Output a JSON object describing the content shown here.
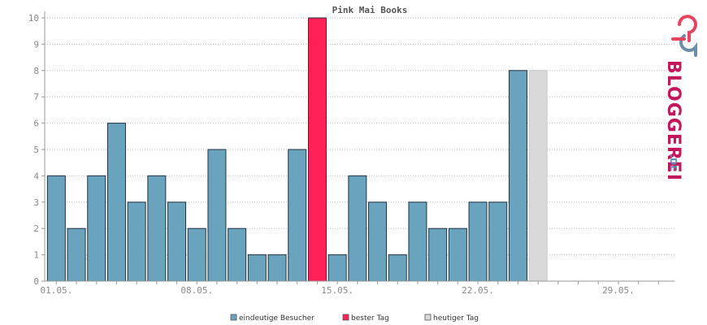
{
  "chart_data": {
    "type": "bar",
    "title": "Pink Mai Books",
    "ylim": [
      0,
      10
    ],
    "yticks": [
      0,
      1,
      2,
      3,
      4,
      5,
      6,
      7,
      8,
      9,
      10
    ],
    "x_labels": [
      {
        "day": 1,
        "label": "01.05."
      },
      {
        "day": 8,
        "label": "08.05."
      },
      {
        "day": 15,
        "label": "15.05."
      },
      {
        "day": 22,
        "label": "22.05."
      },
      {
        "day": 29,
        "label": "29.05."
      }
    ],
    "days_in_axis": 31,
    "values": [
      4,
      2,
      4,
      6,
      3,
      4,
      3,
      2,
      5,
      2,
      1,
      1,
      5,
      10,
      1,
      4,
      3,
      1,
      3,
      2,
      2,
      3,
      3,
      8,
      8
    ],
    "bar_kinds": [
      "normal",
      "normal",
      "normal",
      "normal",
      "normal",
      "normal",
      "normal",
      "normal",
      "normal",
      "normal",
      "normal",
      "normal",
      "normal",
      "best",
      "normal",
      "normal",
      "normal",
      "normal",
      "normal",
      "normal",
      "normal",
      "normal",
      "normal",
      "normal",
      "today"
    ],
    "grid": true,
    "legend_position": "bottom",
    "colors": {
      "normal": "#6aa3bd",
      "best": "#ff2056",
      "today": "#d9d9d9",
      "bar_border": "#223344"
    },
    "legend": [
      {
        "key": "normal",
        "label": "eindeutige Besucher"
      },
      {
        "key": "best",
        "label": "bester Tag"
      },
      {
        "key": "today",
        "label": "heutiger Tag"
      }
    ]
  },
  "logo": {
    "text": "BLOGGEREI",
    "suffix": ".DE"
  }
}
